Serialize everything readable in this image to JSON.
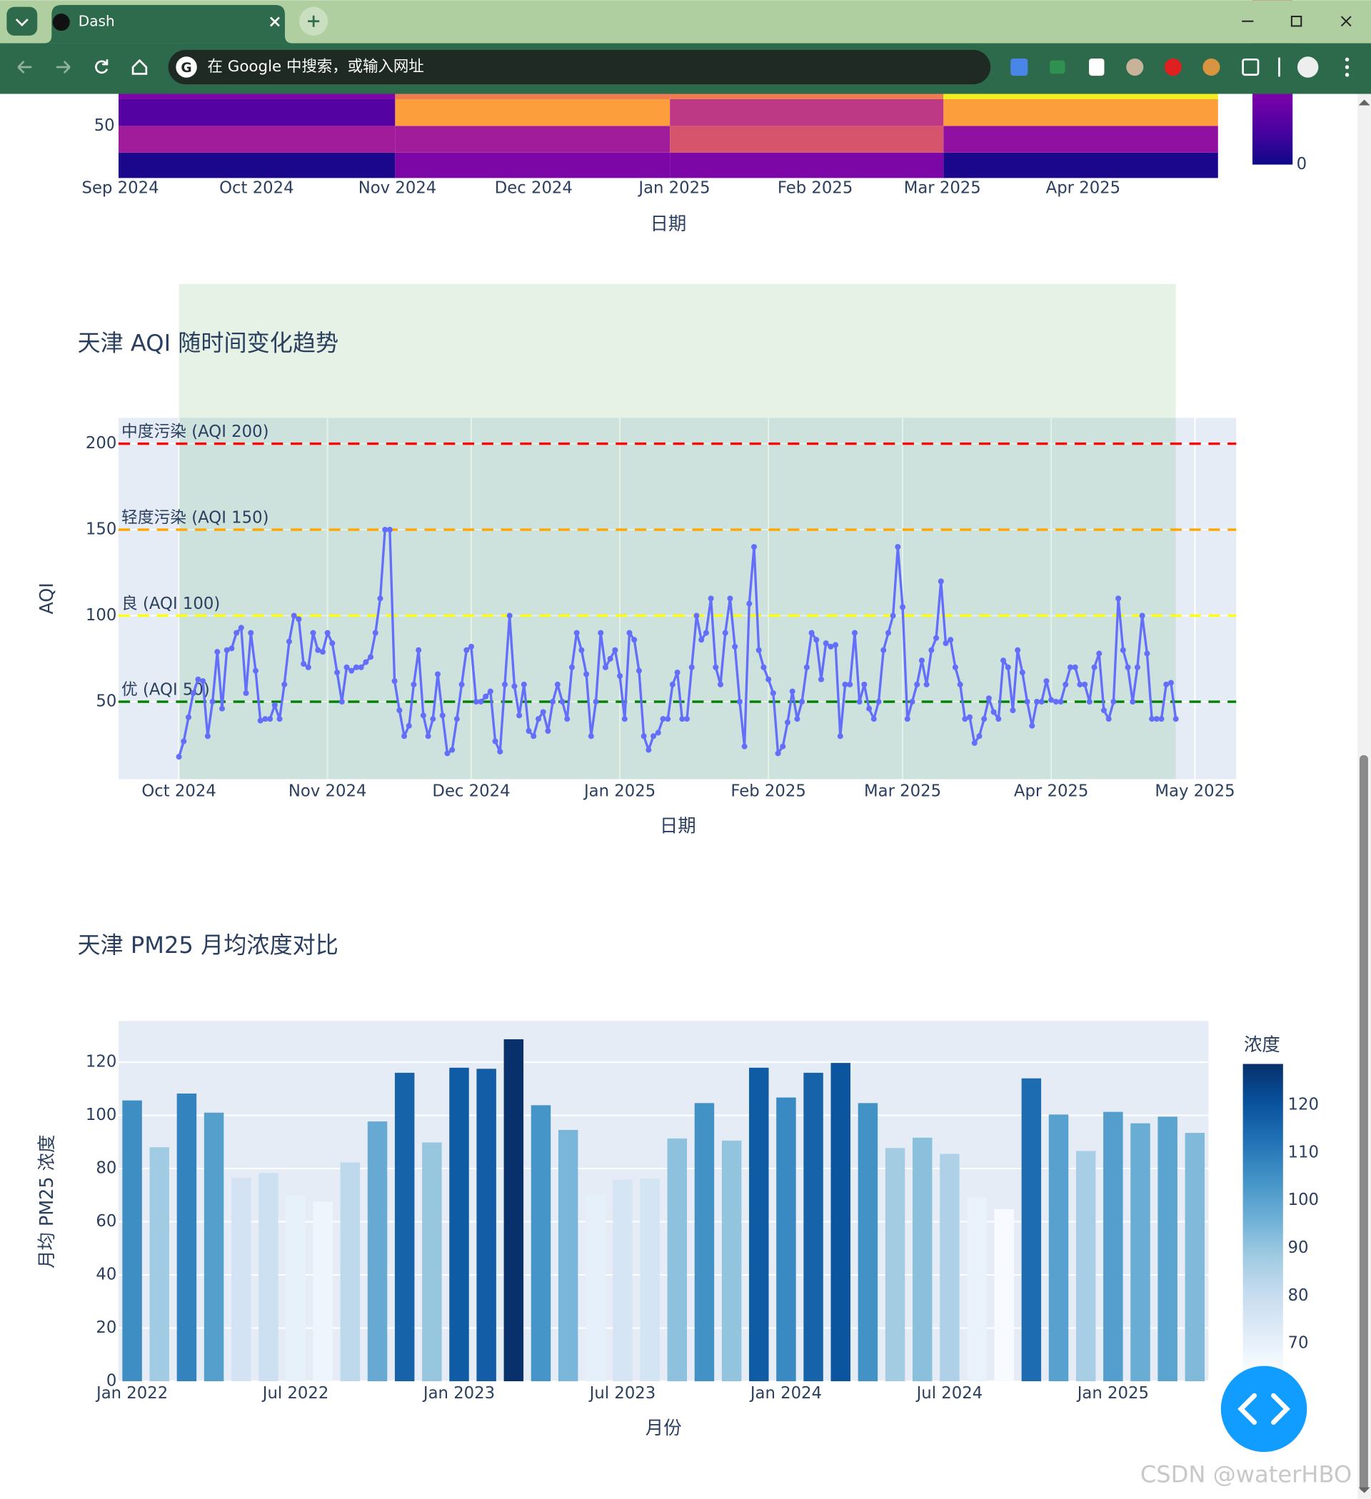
{
  "browser": {
    "tab_title": "Dash",
    "address_placeholder": "在 Google 中搜索，或输入网址"
  },
  "watermark": "CSDN @waterHBO",
  "chart_data": [
    {
      "type": "heatmap",
      "xlabel": "日期",
      "x": [
        30,
        91,
        151,
        211.5
      ],
      "y": [
        35,
        45,
        55,
        65
      ],
      "z": [
        [
          0.1,
          1.0,
          1.0,
          0.1
        ],
        [
          1.4,
          1.4,
          2.2,
          1.2
        ],
        [
          0.6,
          3.1,
          1.8,
          3.1
        ],
        [
          1.0,
          2.7,
          2.7,
          3.9
        ]
      ],
      "xlim": [
        -0.4,
        241.7
      ],
      "ylim": [
        30.5,
        62
      ],
      "xticks": [
        {
          "value": 0,
          "label": "Sep 2024"
        },
        {
          "value": 30,
          "label": "Oct 2024"
        },
        {
          "value": 61,
          "label": "Nov 2024"
        },
        {
          "value": 91,
          "label": "Dec 2024"
        },
        {
          "value": 122,
          "label": "Jan 2025"
        },
        {
          "value": 153,
          "label": "Feb 2025"
        },
        {
          "value": 181,
          "label": "Mar 2025"
        },
        {
          "value": 212,
          "label": "Apr 2025"
        }
      ],
      "yticks": [
        50
      ],
      "colorscale": "Plasma",
      "zlim": [
        0,
        4
      ],
      "colorbar_ticks": [
        0
      ]
    },
    {
      "type": "line",
      "title": "天津 AQI 随时间变化趋势",
      "xlabel": "日期",
      "ylabel": "AQI",
      "color": "#636efa",
      "grid": true,
      "values": [
        18,
        27,
        41,
        55,
        63,
        62,
        30,
        50,
        79,
        46,
        80,
        81,
        90,
        93,
        55,
        90,
        68,
        39,
        40,
        40,
        48,
        40,
        60,
        85,
        100,
        98,
        72,
        70,
        90,
        80,
        79,
        90,
        84,
        67,
        50,
        70,
        68,
        70,
        70,
        73,
        76,
        90,
        110,
        150,
        150,
        62,
        45,
        30,
        36,
        60,
        80,
        42,
        30,
        40,
        66,
        42,
        20,
        22,
        40,
        60,
        80,
        82,
        50,
        50,
        53,
        56,
        27,
        21,
        60,
        100,
        59,
        42,
        60,
        33,
        30,
        40,
        44,
        33,
        50,
        60,
        50,
        40,
        70,
        90,
        80,
        66,
        30,
        50,
        90,
        70,
        75,
        80,
        65,
        40,
        90,
        86,
        68,
        30,
        22,
        30,
        32,
        40,
        40,
        60,
        67,
        40,
        40,
        70,
        100,
        86,
        90,
        110,
        70,
        60,
        90,
        110,
        82,
        50,
        24,
        107,
        140,
        80,
        70,
        63,
        55,
        20,
        24,
        38,
        56,
        40,
        50,
        70,
        90,
        86,
        63,
        84,
        82,
        83,
        30,
        60,
        60,
        90,
        50,
        60,
        46,
        40,
        50,
        80,
        90,
        100,
        140,
        105,
        40,
        50,
        60,
        74,
        60,
        80,
        87,
        120,
        84,
        86,
        70,
        60,
        40,
        41,
        26,
        30,
        40,
        52,
        44,
        40,
        74,
        70,
        45,
        80,
        67,
        50,
        36,
        50,
        50,
        62,
        51,
        50,
        50,
        60,
        70,
        70,
        60,
        60,
        50,
        70,
        78,
        45,
        40,
        50,
        110,
        80,
        70,
        50,
        70,
        100,
        78,
        40,
        40,
        40,
        60,
        61,
        40
      ],
      "xlim": [
        -12.6,
        220.6
      ],
      "ylim": [
        5,
        215
      ],
      "xticks": [
        {
          "value": 0,
          "label": "Oct 2024"
        },
        {
          "value": 31,
          "label": "Nov 2024"
        },
        {
          "value": 61,
          "label": "Dec 2024"
        },
        {
          "value": 92,
          "label": "Jan 2025"
        },
        {
          "value": 123,
          "label": "Feb 2025"
        },
        {
          "value": 151,
          "label": "Mar 2025"
        },
        {
          "value": 182,
          "label": "Apr 2025"
        },
        {
          "value": 212,
          "label": "May 2025"
        }
      ],
      "yticks": [
        50,
        100,
        150,
        200
      ],
      "thresholds": [
        {
          "value": 200,
          "label": "中度污染 (AQI 200)",
          "color": "#ff0000"
        },
        {
          "value": 150,
          "label": "轻度污染 (AQI 150)",
          "color": "#ffa500"
        },
        {
          "value": 100,
          "label": "良 (AQI 100)",
          "color": "#ffff00"
        },
        {
          "value": 50,
          "label": "优 (AQI 50)",
          "color": "#008000"
        }
      ]
    },
    {
      "type": "bar",
      "title": "天津 PM25 月均浓度对比",
      "xlabel": "月份",
      "ylabel": "月均 PM25 浓度",
      "grid": true,
      "categories": [
        "Jan 2022",
        null,
        null,
        null,
        null,
        null,
        "Jul 2022",
        null,
        null,
        null,
        null,
        null,
        "Jan 2023",
        null,
        null,
        null,
        null,
        null,
        "Jul 2023",
        null,
        null,
        null,
        null,
        null,
        "Jan 2024",
        null,
        null,
        null,
        null,
        null,
        "Jul 2024",
        null,
        null,
        null,
        null,
        null,
        "Jan 2025",
        null,
        null,
        null
      ],
      "values": [
        105.6,
        88,
        108.2,
        101,
        76.5,
        78.3,
        69.7,
        67.6,
        82.3,
        97.7,
        116,
        89.8,
        117.9,
        117.5,
        128.6,
        103.8,
        94.5,
        70,
        75.8,
        76.2,
        91.3,
        104.6,
        90.5,
        117.9,
        106.7,
        116,
        119.7,
        104.6,
        87.7,
        91.6,
        85.5,
        69.3,
        64.7,
        113.9,
        100.3,
        86.6,
        101.3,
        97,
        99.5,
        93.4
      ],
      "ylim": [
        0,
        135.5
      ],
      "yticks": [
        0,
        20,
        40,
        60,
        80,
        100,
        120
      ],
      "colorscale": "Blues",
      "zlim": [
        64.7,
        128.6
      ],
      "colorbar_title": "浓度",
      "colorbar_ticks": [
        70,
        80,
        90,
        100,
        110,
        120
      ]
    }
  ]
}
